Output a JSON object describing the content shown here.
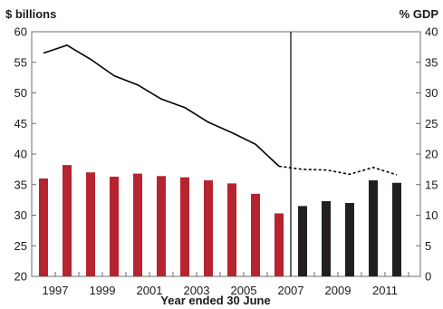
{
  "chart_data": {
    "type": "bar",
    "left_axis_label": "$ billions",
    "right_axis_label": "% GDP",
    "xlabel": "Year ended 30 June",
    "left_ylim": [
      20,
      60
    ],
    "left_ticks": [
      20,
      25,
      30,
      35,
      40,
      45,
      50,
      55,
      60
    ],
    "right_ylim": [
      0,
      40
    ],
    "right_ticks": [
      0,
      5,
      10,
      15,
      20,
      25,
      30,
      35,
      40
    ],
    "x_tick_labels": [
      "1997",
      "1999",
      "2001",
      "2003",
      "2005",
      "2007",
      "2009",
      "2011"
    ],
    "years": [
      1997,
      1998,
      1999,
      2000,
      2001,
      2002,
      2003,
      2004,
      2005,
      2006,
      2007,
      2008,
      2009,
      2010,
      2011,
      2012
    ],
    "divider_after_year": 2007,
    "grid": false,
    "series": [
      {
        "kind": "bar",
        "axis": "left",
        "color": "#b5242f",
        "x": [
          1996.5,
          1997.5,
          1998.5,
          1999.5,
          2000.5,
          2001.5,
          2002.5,
          2003.5,
          2004.5,
          2005.5,
          2006.5
        ],
        "values": [
          36.0,
          38.2,
          37.0,
          36.3,
          36.8,
          36.4,
          36.2,
          35.7,
          35.2,
          33.5,
          30.3
        ]
      },
      {
        "kind": "bar",
        "axis": "left",
        "color": "#231f20",
        "x": [
          2007.5,
          2008.5,
          2009.5,
          2010.5,
          2011.5
        ],
        "values": [
          31.5,
          32.3,
          32.0,
          35.7,
          35.3
        ]
      },
      {
        "kind": "line",
        "axis": "right",
        "style": "solid",
        "color": "#000000",
        "x": [
          1996.5,
          1997.5,
          1998.5,
          1999.5,
          2000.5,
          2001.5,
          2002.5,
          2003.5,
          2004.5,
          2005.5,
          2006.5
        ],
        "values": [
          36.5,
          37.8,
          35.5,
          32.8,
          31.3,
          29.0,
          27.6,
          25.2,
          23.5,
          21.6,
          18.0
        ]
      },
      {
        "kind": "line",
        "axis": "right",
        "style": "dashed",
        "color": "#000000",
        "x": [
          2006.5,
          2007.5,
          2008.5,
          2009.5,
          2010.5,
          2011.5
        ],
        "values": [
          18.0,
          17.5,
          17.4,
          16.7,
          17.8,
          16.6
        ]
      }
    ]
  }
}
